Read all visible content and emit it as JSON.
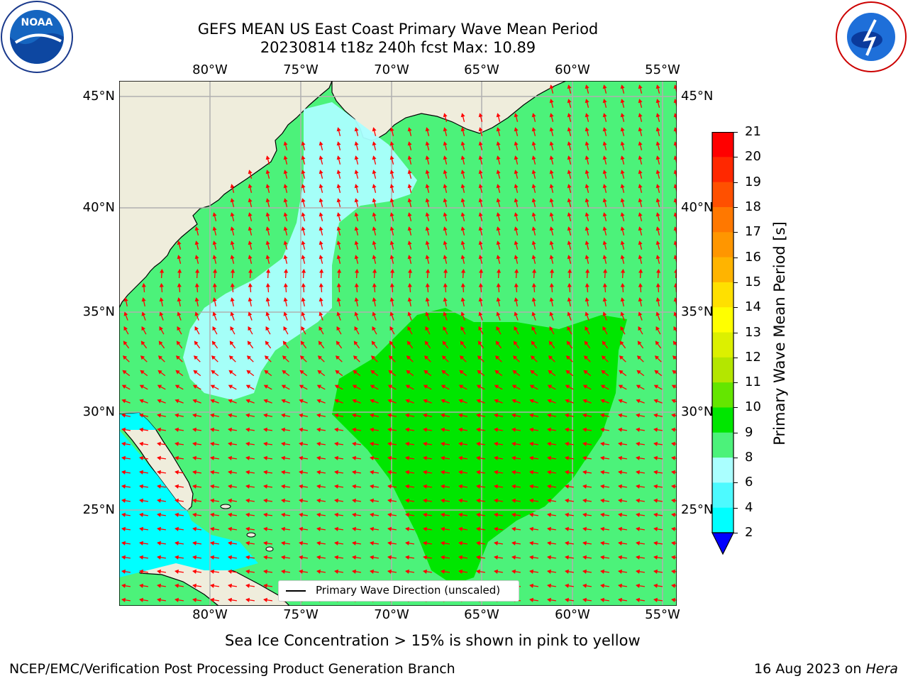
{
  "header": {
    "title_line1": "GEFS MEAN US East Coast Primary Wave Mean Period",
    "title_line2": "20230814 t18z 240h fcst   Max: 10.89"
  },
  "logos": {
    "left": "noaa-logo",
    "right": "national-weather-service-logo",
    "left_text": "NOAA",
    "right_text": "NATIONAL WEATHER SERVICE"
  },
  "map": {
    "lon_labels": [
      "80°W",
      "75°W",
      "70°W",
      "65°W",
      "60°W",
      "55°W"
    ],
    "lat_labels": [
      "45°N",
      "40°N",
      "35°N",
      "30°N",
      "25°N"
    ],
    "colors": {
      "land": "#efeddc",
      "grid": "#b0b0b0",
      "arrow": "#ff0000",
      "coast": "#000000"
    }
  },
  "legend": {
    "label": "Primary Wave Direction (unscaled)"
  },
  "colorbar": {
    "label": "Primary Wave Mean Period [s]",
    "ticks": [
      "21",
      "20",
      "19",
      "18",
      "17",
      "16",
      "15",
      "14",
      "13",
      "12",
      "11",
      "10",
      "9",
      "8",
      "6",
      "4",
      "2"
    ],
    "colors": [
      "#ff0000",
      "#ff2800",
      "#ff5000",
      "#ff7800",
      "#ff9600",
      "#ffb400",
      "#ffe000",
      "#ffff00",
      "#dcf000",
      "#b4e600",
      "#64e600",
      "#00e600",
      "#4cf27a",
      "#aaffff",
      "#4dfaff",
      "#00ffff",
      "#1e90ff"
    ],
    "extend_color": "#0000ff"
  },
  "footer": {
    "note": "Sea Ice Concentration > 15% is shown in pink to yellow",
    "credit": "NCEP/EMC/Verification Post Processing Product Generation Branch",
    "date": "16 Aug 2023 on",
    "machine": "Hera"
  }
}
